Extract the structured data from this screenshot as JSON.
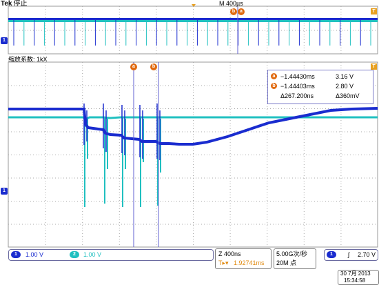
{
  "header": {
    "brand": "Tek",
    "state": "停止",
    "timebase": "M 400µs"
  },
  "zoom": {
    "label": "缩放系数: 1kX"
  },
  "cursors": {
    "a_label": "a",
    "b_label": "b",
    "trigger_label": "T"
  },
  "measurements": {
    "rows": [
      {
        "marker": "a",
        "time": "−1.44430ms",
        "volt": "3.16 V"
      },
      {
        "marker": "b",
        "time": "−1.44403ms",
        "volt": "2.80 V"
      },
      {
        "marker": "",
        "time": "Δ267.200ns",
        "volt": "Δ360mV"
      }
    ]
  },
  "channels": {
    "ch1": {
      "num": "1",
      "scale": "1.00 V",
      "color": "#1a2ccf"
    },
    "ch2": {
      "num": "2",
      "scale": "1.00 V",
      "color": "#20c0c0"
    }
  },
  "zoom_status": {
    "scale": "Z 400ns",
    "trigger_pos": "1.92741ms",
    "trigger_prefix": "T▸▾"
  },
  "acquisition": {
    "rate": "5.00G次/秒",
    "points": "20M 点"
  },
  "trigger": {
    "channel": "1",
    "slope": "ʃ",
    "level": "2.70 V"
  },
  "datetime": {
    "date": "30 7月  2013",
    "time": "15:34:58"
  },
  "colors": {
    "ch1": "#1a2ccf",
    "ch2": "#20c0c0",
    "cursor": "#6060d0",
    "accent": "#e06a10"
  }
}
